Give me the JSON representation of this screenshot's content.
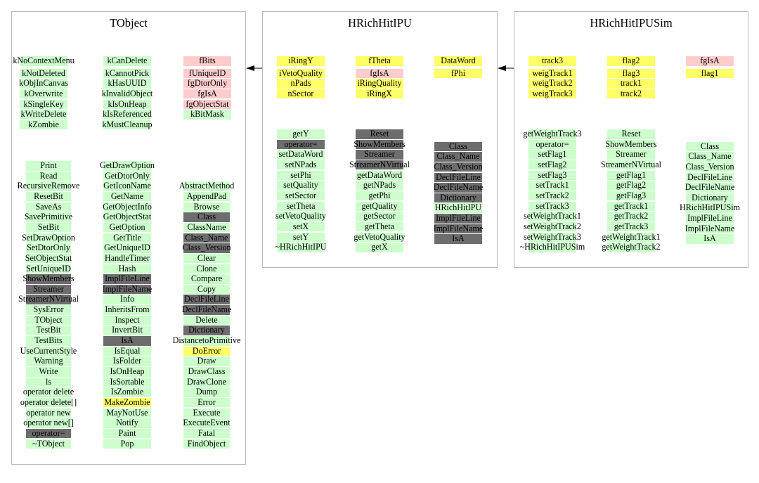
{
  "colors": {
    "green": "#ccffcc",
    "dark": "#6d6d6d",
    "yellow": "#ffff66",
    "pink": "#ffcccc",
    "border": "#b9b9b9"
  },
  "panels": [
    {
      "name": "tobject",
      "title": "TObject",
      "groups": [
        {
          "columns": [
            [
              [
                "kNoContextMenu",
                "green"
              ],
              [
                "kNotDeleted",
                "green"
              ],
              [
                "kObjInCanvas",
                "green"
              ],
              [
                "kOverwrite",
                "green"
              ],
              [
                "kSingleKey",
                "green"
              ],
              [
                "kWriteDelete",
                "green"
              ],
              [
                "kZombie",
                "green"
              ]
            ],
            [
              [
                "kCanDelete",
                "green"
              ],
              [
                "kCannotPick",
                "green"
              ],
              [
                "kHasUUID",
                "green"
              ],
              [
                "kInvalidObject",
                "green"
              ],
              [
                "kIsOnHeap",
                "green"
              ],
              [
                "kIsReferenced",
                "green"
              ],
              [
                "kMustCleanup",
                "green"
              ]
            ],
            [
              [
                "fBits",
                "pink"
              ],
              [
                "fUniqueID",
                "pink"
              ],
              [
                "fgDtorOnly",
                "pink"
              ],
              [
                "fgIsA",
                "pink"
              ],
              [
                "fgObjectStat",
                "pink"
              ],
              [
                "kBitMask",
                "green"
              ]
            ]
          ]
        },
        {
          "columns": [
            [
              [
                "Print",
                "green"
              ],
              [
                "Read",
                "green"
              ],
              [
                "RecursiveRemove",
                "green"
              ],
              [
                "ResetBit",
                "green"
              ],
              [
                "SaveAs",
                "green"
              ],
              [
                "SavePrimitive",
                "green"
              ],
              [
                "SetBit",
                "green"
              ],
              [
                "SetDrawOption",
                "green"
              ],
              [
                "SetDtorOnly",
                "green"
              ],
              [
                "SetObjectStat",
                "green"
              ],
              [
                "SetUniqueID",
                "green"
              ],
              [
                "ShowMembers",
                "dark"
              ],
              [
                "Streamer",
                "dark"
              ],
              [
                "StreamerNVirtual",
                "dark"
              ],
              [
                "SysError",
                "green"
              ],
              [
                "TObject",
                "green"
              ],
              [
                "TestBit",
                "green"
              ],
              [
                "TestBits",
                "green"
              ],
              [
                "UseCurrentStyle",
                "green"
              ],
              [
                "Warning",
                "green"
              ],
              [
                "Write",
                "green"
              ],
              [
                "ls",
                "green"
              ],
              [
                "operator delete",
                "green"
              ],
              [
                "operator delete[]",
                "green"
              ],
              [
                "operator new",
                "green"
              ],
              [
                "operator new[]",
                "green"
              ],
              [
                "operator=",
                "dark"
              ],
              [
                "~TObject",
                "green"
              ]
            ],
            [
              [
                "GetDrawOption",
                "green"
              ],
              [
                "GetDtorOnly",
                "green"
              ],
              [
                "GetIconName",
                "green"
              ],
              [
                "GetName",
                "green"
              ],
              [
                "GetObjectInfo",
                "green"
              ],
              [
                "GetObjectStat",
                "green"
              ],
              [
                "GetOption",
                "green"
              ],
              [
                "GetTitle",
                "green"
              ],
              [
                "GetUniqueID",
                "green"
              ],
              [
                "HandleTimer",
                "green"
              ],
              [
                "Hash",
                "green"
              ],
              [
                "ImplFileLine",
                "dark"
              ],
              [
                "ImplFileName",
                "dark"
              ],
              [
                "Info",
                "green"
              ],
              [
                "InheritsFrom",
                "green"
              ],
              [
                "Inspect",
                "green"
              ],
              [
                "InvertBit",
                "green"
              ],
              [
                "IsA",
                "dark"
              ],
              [
                "IsEqual",
                "green"
              ],
              [
                "IsFolder",
                "green"
              ],
              [
                "IsOnHeap",
                "green"
              ],
              [
                "IsSortable",
                "green"
              ],
              [
                "IsZombie",
                "green"
              ],
              [
                "MakeZombie",
                "yellow"
              ],
              [
                "MayNotUse",
                "green"
              ],
              [
                "Notify",
                "green"
              ],
              [
                "Paint",
                "green"
              ],
              [
                "Pop",
                "green"
              ]
            ],
            [
              [
                "AbstractMethod",
                "green"
              ],
              [
                "AppendPad",
                "green"
              ],
              [
                "Browse",
                "green"
              ],
              [
                "Class",
                "dark"
              ],
              [
                "ClassName",
                "green"
              ],
              [
                "Class_Name",
                "dark"
              ],
              [
                "Class_Version",
                "dark"
              ],
              [
                "Clear",
                "green"
              ],
              [
                "Clone",
                "green"
              ],
              [
                "Compare",
                "green"
              ],
              [
                "Copy",
                "green"
              ],
              [
                "DeclFileLine",
                "dark"
              ],
              [
                "DeclFileName",
                "dark"
              ],
              [
                "Delete",
                "green"
              ],
              [
                "Dictionary",
                "dark"
              ],
              [
                "DistancetoPrimitive",
                "green"
              ],
              [
                "DoError",
                "yellow"
              ],
              [
                "Draw",
                "green"
              ],
              [
                "DrawClass",
                "green"
              ],
              [
                "DrawClone",
                "green"
              ],
              [
                "Dump",
                "green"
              ],
              [
                "Error",
                "green"
              ],
              [
                "Execute",
                "green"
              ],
              [
                "ExecuteEvent",
                "green"
              ],
              [
                "Fatal",
                "green"
              ],
              [
                "FindObject",
                "green"
              ]
            ]
          ]
        }
      ]
    },
    {
      "name": "hrichhitipu",
      "title": "HRichHitIPU",
      "groups": [
        {
          "columns": [
            [
              [
                "iRingY",
                "yellow"
              ],
              [
                "iVetoQuality",
                "yellow"
              ],
              [
                "nPads",
                "yellow"
              ],
              [
                "nSector",
                "yellow"
              ]
            ],
            [
              [
                "fTheta",
                "yellow"
              ],
              [
                "fgIsA",
                "pink"
              ],
              [
                "iRingQuality",
                "yellow"
              ],
              [
                "iRingX",
                "yellow"
              ]
            ],
            [
              [
                "DataWord",
                "yellow"
              ],
              [
                "fPhi",
                "yellow"
              ]
            ]
          ]
        },
        {
          "columns": [
            [
              [
                "getY",
                "green"
              ],
              [
                "operator=",
                "dark"
              ],
              [
                "setDataWord",
                "green"
              ],
              [
                "setNPads",
                "green"
              ],
              [
                "setPhi",
                "green"
              ],
              [
                "setQuality",
                "green"
              ],
              [
                "setSector",
                "green"
              ],
              [
                "setTheta",
                "green"
              ],
              [
                "setVetoQuality",
                "green"
              ],
              [
                "setX",
                "green"
              ],
              [
                "setY",
                "green"
              ],
              [
                "~HRichHitIPU",
                "green"
              ]
            ],
            [
              [
                "Reset",
                "dark"
              ],
              [
                "ShowMembers",
                "dark"
              ],
              [
                "Streamer",
                "dark"
              ],
              [
                "StreamerNVirtual",
                "dark"
              ],
              [
                "getDataWord",
                "green"
              ],
              [
                "getNPads",
                "green"
              ],
              [
                "getPhi",
                "green"
              ],
              [
                "getQuality",
                "green"
              ],
              [
                "getSector",
                "green"
              ],
              [
                "getTheta",
                "green"
              ],
              [
                "getVetoQuality",
                "green"
              ],
              [
                "getX",
                "green"
              ]
            ],
            [
              [
                "Class",
                "dark"
              ],
              [
                "Class_Name",
                "dark"
              ],
              [
                "Class_Version",
                "dark"
              ],
              [
                "DeclFileLine",
                "dark"
              ],
              [
                "DeclFileName",
                "dark"
              ],
              [
                "Dictionary",
                "dark"
              ],
              [
                "HRichHitIPU",
                "green"
              ],
              [
                "ImplFileLine",
                "dark"
              ],
              [
                "ImplFileName",
                "dark"
              ],
              [
                "IsA",
                "dark"
              ]
            ]
          ]
        }
      ]
    },
    {
      "name": "hrichhitipusim",
      "title": "HRichHitIPUSim",
      "groups": [
        {
          "columns": [
            [
              [
                "track3",
                "yellow"
              ],
              [
                "weigTrack1",
                "yellow"
              ],
              [
                "weigTrack2",
                "yellow"
              ],
              [
                "weigTrack3",
                "yellow"
              ]
            ],
            [
              [
                "flag2",
                "yellow"
              ],
              [
                "flag3",
                "yellow"
              ],
              [
                "track1",
                "yellow"
              ],
              [
                "track2",
                "yellow"
              ]
            ],
            [
              [
                "fgIsA",
                "pink"
              ],
              [
                "flag1",
                "yellow"
              ]
            ]
          ]
        },
        {
          "columns": [
            [
              [
                "getWeightTrack3",
                "green"
              ],
              [
                "operator=",
                "green"
              ],
              [
                "setFlag1",
                "green"
              ],
              [
                "setFlag2",
                "green"
              ],
              [
                "setFlag3",
                "green"
              ],
              [
                "setTrack1",
                "green"
              ],
              [
                "setTrack2",
                "green"
              ],
              [
                "setTrack3",
                "green"
              ],
              [
                "setWeightTrack1",
                "green"
              ],
              [
                "setWeightTrack2",
                "green"
              ],
              [
                "setWeightTrack3",
                "green"
              ],
              [
                "~HRichHitIPUSim",
                "green"
              ]
            ],
            [
              [
                "Reset",
                "green"
              ],
              [
                "ShowMembers",
                "green"
              ],
              [
                "Streamer",
                "green"
              ],
              [
                "StreamerNVirtual",
                "green"
              ],
              [
                "getFlag1",
                "green"
              ],
              [
                "getFlag2",
                "green"
              ],
              [
                "getFlag3",
                "green"
              ],
              [
                "getTrack1",
                "green"
              ],
              [
                "getTrack2",
                "green"
              ],
              [
                "getTrack3",
                "green"
              ],
              [
                "getWeightTrack1",
                "green"
              ],
              [
                "getWeightTrack2",
                "green"
              ]
            ],
            [
              [
                "Class",
                "green"
              ],
              [
                "Class_Name",
                "green"
              ],
              [
                "Class_Version",
                "green"
              ],
              [
                "DeclFileLine",
                "green"
              ],
              [
                "DeclFileName",
                "green"
              ],
              [
                "Dictionary",
                "green"
              ],
              [
                "HRichHitIPUSim",
                "green"
              ],
              [
                "ImplFileLine",
                "green"
              ],
              [
                "ImplFileName",
                "green"
              ],
              [
                "IsA",
                "green"
              ]
            ]
          ]
        }
      ]
    }
  ],
  "arrows": [
    {
      "from": "hrichhitipu",
      "to": "tobject"
    },
    {
      "from": "hrichhitipusim",
      "to": "hrichhitipu"
    }
  ]
}
